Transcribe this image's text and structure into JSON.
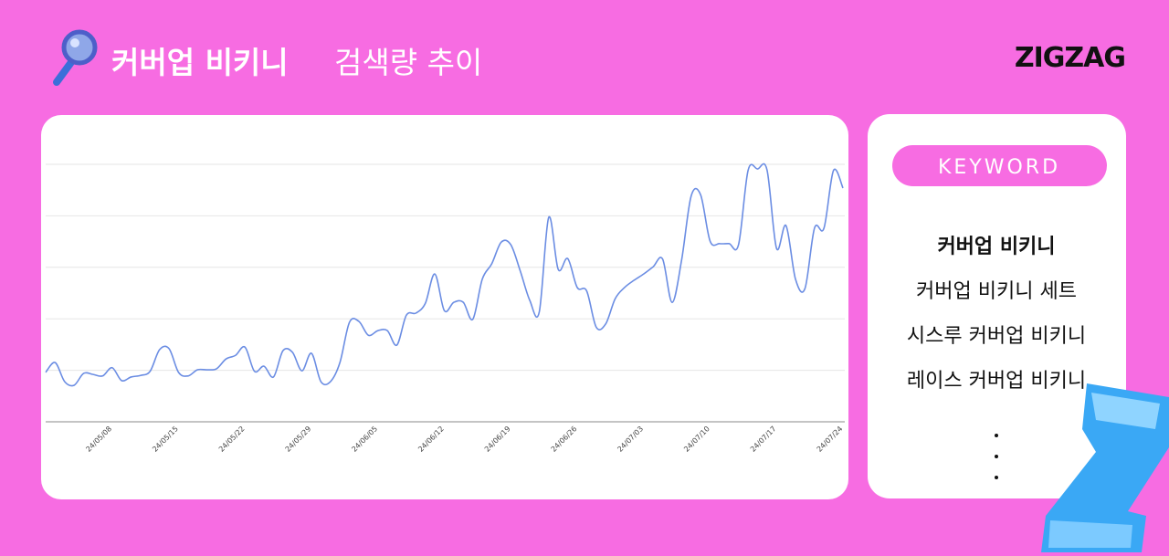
{
  "header": {
    "title_bold": "커버업 비키니",
    "title_rest": "검색량 추이",
    "logo": "ZIGZAG"
  },
  "chart_data": {
    "type": "line",
    "categories": [
      null,
      null,
      null,
      null,
      null,
      null,
      null,
      "24/05/08",
      null,
      null,
      null,
      null,
      null,
      null,
      "24/05/15",
      null,
      null,
      null,
      null,
      null,
      null,
      "24/05/22",
      null,
      null,
      null,
      null,
      null,
      null,
      "24/05/29",
      null,
      null,
      null,
      null,
      null,
      null,
      "24/06/05",
      null,
      null,
      null,
      null,
      null,
      null,
      "24/06/12",
      null,
      null,
      null,
      null,
      null,
      null,
      "24/06/19",
      null,
      null,
      null,
      null,
      null,
      null,
      "24/06/26",
      null,
      null,
      null,
      null,
      null,
      null,
      "24/07/03",
      null,
      null,
      null,
      null,
      null,
      null,
      "24/07/10",
      null,
      null,
      null,
      null,
      null,
      null,
      "24/07/17",
      null,
      null,
      null,
      null,
      null,
      null,
      "24/07/24"
    ],
    "values": [
      0.96,
      1.15,
      0.78,
      0.71,
      0.94,
      0.92,
      0.89,
      1.05,
      0.8,
      0.87,
      0.9,
      0.98,
      1.4,
      1.42,
      0.96,
      0.89,
      1.01,
      1.01,
      1.03,
      1.22,
      1.29,
      1.45,
      0.98,
      1.08,
      0.87,
      1.38,
      1.35,
      0.99,
      1.33,
      0.78,
      0.78,
      1.15,
      1.93,
      1.95,
      1.68,
      1.77,
      1.77,
      1.49,
      2.07,
      2.11,
      2.3,
      2.87,
      2.16,
      2.32,
      2.32,
      1.99,
      2.77,
      3.07,
      3.49,
      3.44,
      2.93,
      2.36,
      2.13,
      3.97,
      2.96,
      3.17,
      2.61,
      2.54,
      1.84,
      1.9,
      2.39,
      2.61,
      2.75,
      2.87,
      3.01,
      3.16,
      2.32,
      3.14,
      4.38,
      4.41,
      3.51,
      3.46,
      3.46,
      3.44,
      4.88,
      4.91,
      4.89,
      3.37,
      3.81,
      2.77,
      2.59,
      3.76,
      3.76,
      4.88,
      4.54
    ],
    "color": "#6b8de3",
    "ylim": [
      0,
      5
    ],
    "yticks": [
      0,
      1,
      2,
      3,
      4,
      5
    ],
    "grid": true
  },
  "keywords": {
    "label": "KEYWORD",
    "items": [
      "커버업 비키니",
      "커버업 비키니 세트",
      "시스루 커버업 비키니",
      "레이스 커버업 비키니"
    ]
  }
}
